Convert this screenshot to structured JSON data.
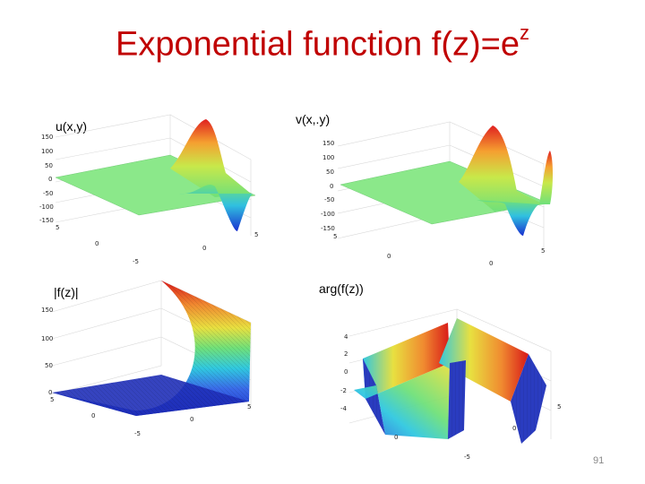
{
  "slide": {
    "title": "Exponential function f(z)=e",
    "title_sup": "z",
    "page_number": "91"
  },
  "panels": [
    {
      "label": "u(x,y)",
      "zticks": [
        "150",
        "100",
        "50",
        "0",
        "-50",
        "-100",
        "-150"
      ],
      "yticks": [
        "5",
        "0",
        "-5"
      ],
      "xticks": [
        "0",
        "5"
      ]
    },
    {
      "label": "v(x,.y)",
      "zticks": [
        "150",
        "100",
        "50",
        "0",
        "-50",
        "-100",
        "-150"
      ],
      "yticks": [
        "5",
        "0"
      ],
      "xticks": [
        "0",
        "5"
      ]
    },
    {
      "label": "|f(z)|",
      "zticks": [
        "150",
        "100",
        "50",
        "0"
      ],
      "yticks": [
        "5",
        "0",
        "-5"
      ],
      "xticks": [
        "0",
        "5"
      ]
    },
    {
      "label": "arg(f(z))",
      "zticks": [
        "4",
        "2",
        "0",
        "-2",
        "-4"
      ],
      "yticks": [
        "0",
        "-5"
      ],
      "xticks": [
        "0",
        "5"
      ]
    }
  ],
  "colors": {
    "title": "#c00000",
    "gridline": "#d8d8d8"
  }
}
